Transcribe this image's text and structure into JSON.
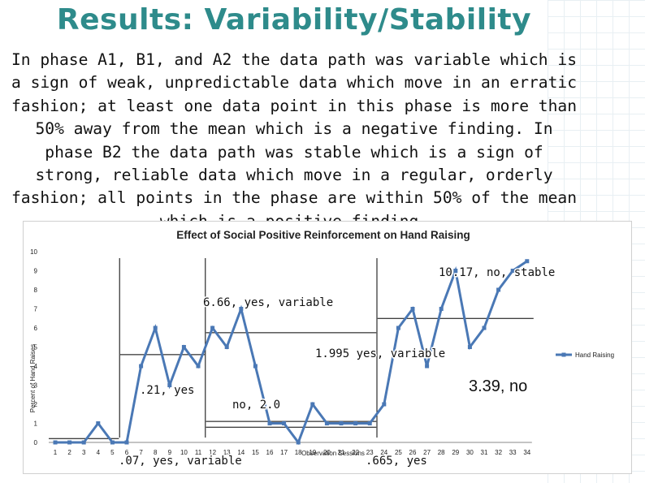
{
  "slide": {
    "title": "Results: Variability/Stability",
    "body": "In phase A1, B1, and A2 the data path was variable which is a sign of weak, unpredictable data which move in an erratic fashion; at least one data point in this phase is more than 50% away from the mean which is a negative finding. In phase B2 the data path was stable which is a sign of strong, reliable data which move in a regular, orderly fashion; all points in the phase are within 50% of the mean which is a positive finding."
  },
  "chart_data": {
    "type": "line",
    "title": "Effect of Social Positive Reinforcement on Hand Raising",
    "xlabel": "Observation Sessions",
    "ylabel": "Percent of Hand Raises",
    "ylim": [
      0,
      10
    ],
    "yticks": [
      0,
      1,
      2,
      3,
      4,
      5,
      6,
      7,
      8,
      9,
      10
    ],
    "categories": [
      "1",
      "2",
      "3",
      "4",
      "5",
      "6",
      "7",
      "8",
      "9",
      "10",
      "11",
      "12",
      "13",
      "14",
      "15",
      "16",
      "17",
      "18",
      "19",
      "20",
      "21",
      "22",
      "23",
      "24",
      "25",
      "26",
      "27",
      "28",
      "29",
      "30",
      "31",
      "32",
      "33",
      "34"
    ],
    "legend": [
      "Hand Raising"
    ],
    "series": [
      {
        "name": "Hand Raising",
        "values": [
          0,
          0,
          0,
          1,
          0,
          0,
          4.0,
          6.0,
          3.0,
          5.0,
          4.0,
          6.0,
          5.0,
          7.0,
          4.0,
          1.0,
          1.0,
          0,
          2.0,
          1.0,
          1.0,
          1.0,
          1.0,
          2.0,
          6.0,
          7.0,
          4.0,
          7.0,
          9.0,
          5.0,
          6.0,
          8.0,
          9.0,
          9.5
        ]
      }
    ],
    "annotations": [
      {
        "text": ".07, yes, variable"
      },
      {
        "text": ".21, yes"
      },
      {
        "text": "6.66, yes, variable"
      },
      {
        "text": "no, 2.0"
      },
      {
        "text": "1.995 yes, variable"
      },
      {
        "text": ".665, yes"
      },
      {
        "text": "10.17, no, stable"
      },
      {
        "text": "3.39, no"
      }
    ]
  }
}
